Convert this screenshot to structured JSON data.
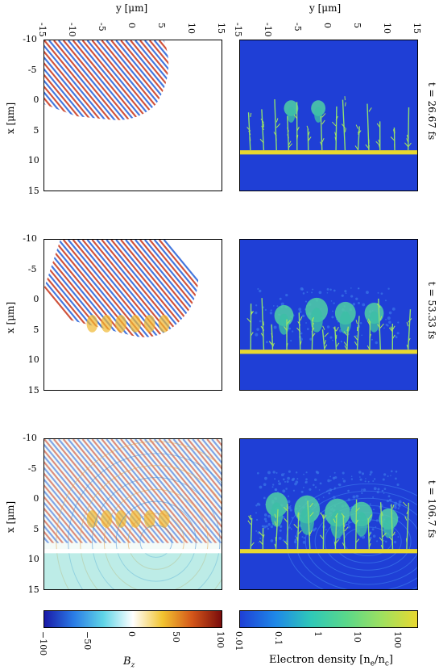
{
  "chart_data": {
    "type": "heatmap",
    "figure_axes": {
      "y_label": "y [μm]",
      "x_label": "x [μm]",
      "y_ticks": [
        "-15",
        "-10",
        "-5",
        "0",
        "5",
        "10",
        "15"
      ],
      "x_ticks": [
        "-10",
        "-5",
        "0",
        "5",
        "10",
        "15"
      ],
      "y_range": [
        -15,
        15
      ],
      "x_range": [
        -10,
        15
      ]
    },
    "rows": [
      {
        "time_label": "t = 26.67 fs"
      },
      {
        "time_label": "t = 53.33 fs"
      },
      {
        "time_label": "t = 106.7 fs"
      }
    ],
    "columns": [
      {
        "quantity": "B_z",
        "colorbar": {
          "label": "B",
          "label_sub": "z",
          "ticks": [
            "−100",
            "−50",
            "0",
            "50",
            "100"
          ],
          "tick_values": [
            -100,
            -50,
            0,
            50,
            100
          ],
          "range": [
            -100,
            100
          ],
          "colors": [
            "#1a1aa8",
            "#2a7ce6",
            "#5fd4e6",
            "#ffffff",
            "#f2c430",
            "#d4571a",
            "#7a0c0c"
          ]
        }
      },
      {
        "quantity": "electron density",
        "colorbar": {
          "label": "Electron density [n",
          "label_sub1": "e",
          "label_mid": "/n",
          "label_sub2": "c",
          "label_end": "]",
          "ticks": [
            "0.01",
            "0.1",
            "1",
            "10",
            "100"
          ],
          "tick_values": [
            0.01,
            0.1,
            1,
            10,
            100
          ],
          "scale": "log",
          "range": [
            0.01,
            300
          ],
          "colors": [
            "#1f3fd6",
            "#1e88e8",
            "#2fc8b8",
            "#5ad88a",
            "#9ee060",
            "#e8d830"
          ]
        }
      }
    ],
    "target_layer_x_um": [
      8.3,
      9.0
    ]
  }
}
